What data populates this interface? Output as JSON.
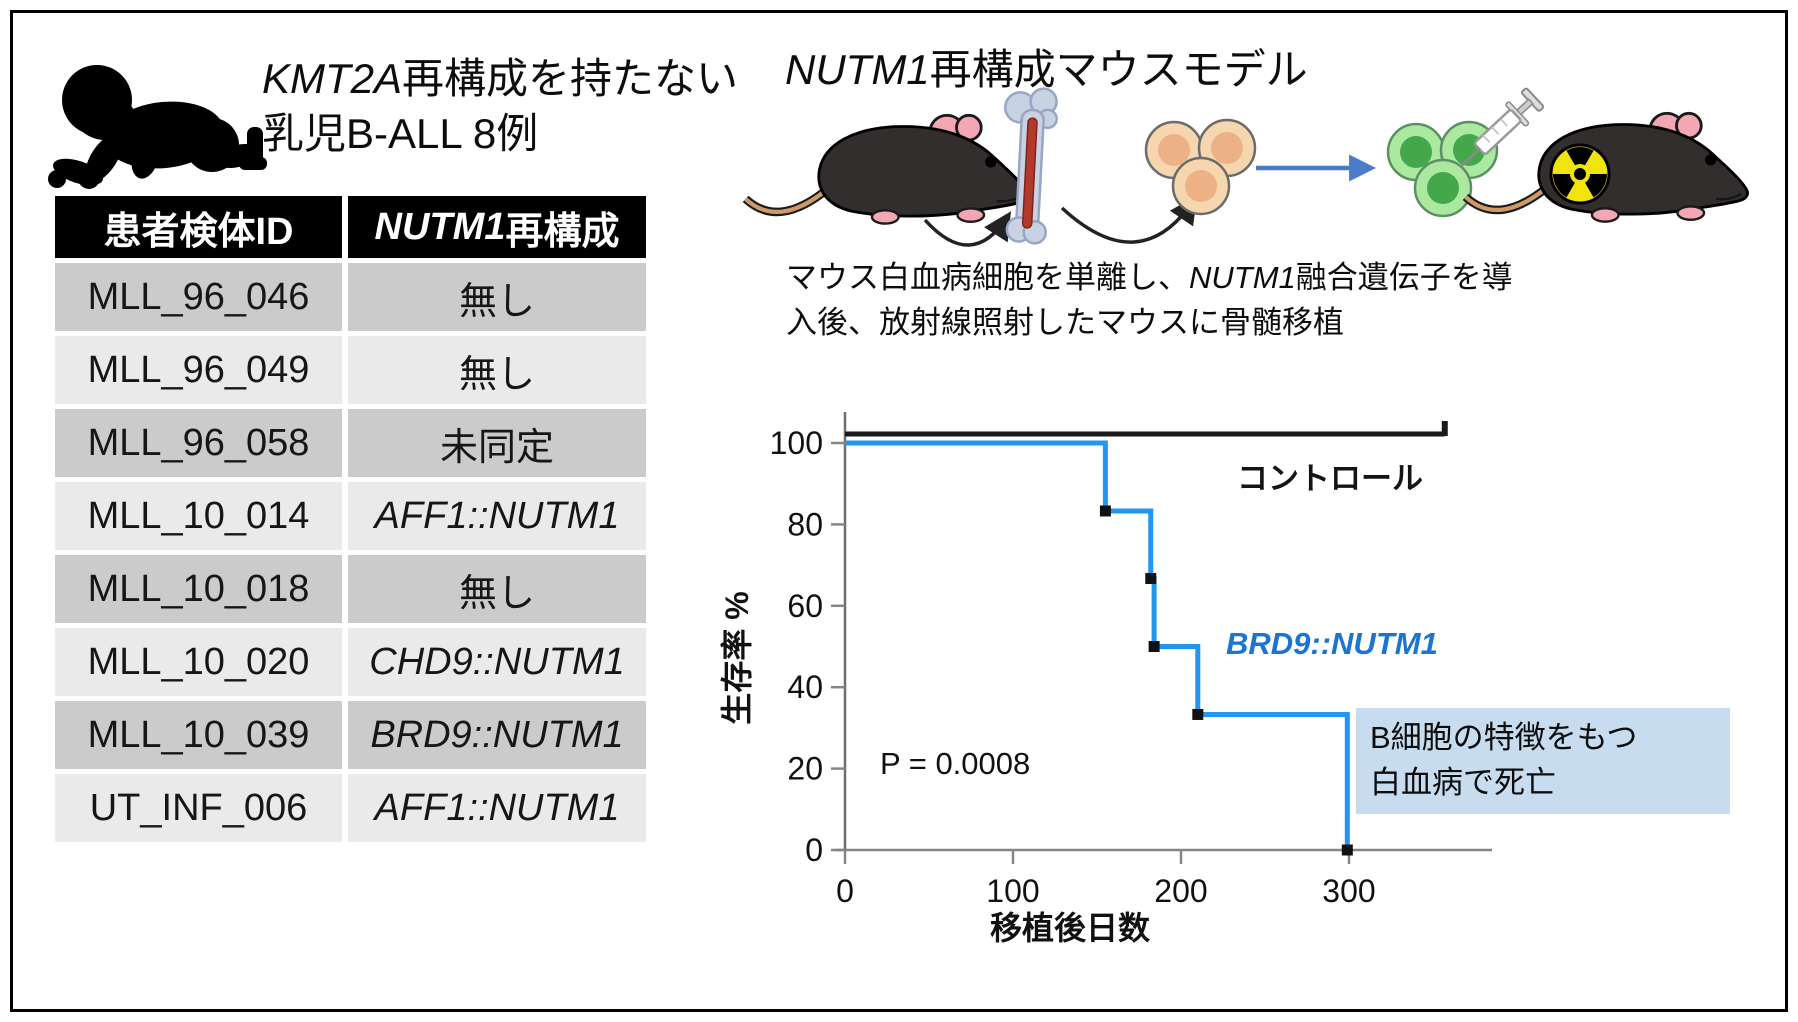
{
  "left_panel": {
    "title_line1_gene": "KMT2A",
    "title_line1_rest": "再構成を持たない",
    "title_line2": "乳児B-ALL 8例",
    "table": {
      "header1": "患者検体ID",
      "header2_gene": "NUTM1",
      "header2_rest": "再構成",
      "rows": [
        {
          "id": "MLL_96_046",
          "fusion": "無し"
        },
        {
          "id": "MLL_96_049",
          "fusion": "無し"
        },
        {
          "id": "MLL_96_058",
          "fusion": "未同定"
        },
        {
          "id": "MLL_10_014",
          "fusion": "AFF1::NUTM1"
        },
        {
          "id": "MLL_10_018",
          "fusion": "無し"
        },
        {
          "id": "MLL_10_020",
          "fusion": "CHD9::NUTM1"
        },
        {
          "id": "MLL_10_039",
          "fusion": "BRD9::NUTM1"
        },
        {
          "id": "UT_INF_006",
          "fusion": "AFF1::NUTM1"
        }
      ]
    }
  },
  "right_panel": {
    "title_gene": "NUTM1",
    "title_rest": "再構成マウスモデル",
    "caption_part1": "マウス白血病細胞を単離し、",
    "caption_gene": "NUTM1",
    "caption_part2": "融合遺伝子を導",
    "caption_part3": "入後、放射線照射したマウスに骨髄移植",
    "annotation_line1": "B細胞の特徴をもつ",
    "annotation_line2": "白血病で死亡"
  },
  "colors": {
    "curve_blue": "#2196f3",
    "legend_blue": "#1b74d1",
    "control_black": "#1a1a1a",
    "annotation_bg": "#c8dcef",
    "radiation_yellow": "#f0e40a"
  },
  "chart_data": {
    "type": "line",
    "title": "",
    "xlabel": "移植後日数",
    "ylabel": "生存率 %",
    "xlim": [
      0,
      385
    ],
    "ylim": [
      0,
      100
    ],
    "x_ticks": [
      0,
      100,
      200,
      300
    ],
    "y_ticks": [
      0,
      20,
      40,
      60,
      80,
      100
    ],
    "grid": false,
    "legend_position": "inline",
    "p_value": "P = 0.0008",
    "series": [
      {
        "name": "コントロール",
        "color": "#1a1a1a",
        "x": [
          0,
          357
        ],
        "y": [
          100,
          100
        ],
        "censor_days": [
          357
        ]
      },
      {
        "name": "BRD9::NUTM1",
        "color": "#2196f3",
        "x": [
          0,
          155,
          155,
          182,
          182,
          184,
          184,
          210,
          210,
          299,
          299
        ],
        "y": [
          100,
          100,
          83.3,
          83.3,
          66.7,
          66.7,
          50,
          50,
          33.3,
          33.3,
          0
        ],
        "event_markers": [
          [
            155,
            83.3
          ],
          [
            182,
            66.7
          ],
          [
            184,
            50
          ],
          [
            210,
            33.3
          ],
          [
            299,
            0
          ]
        ]
      }
    ]
  }
}
